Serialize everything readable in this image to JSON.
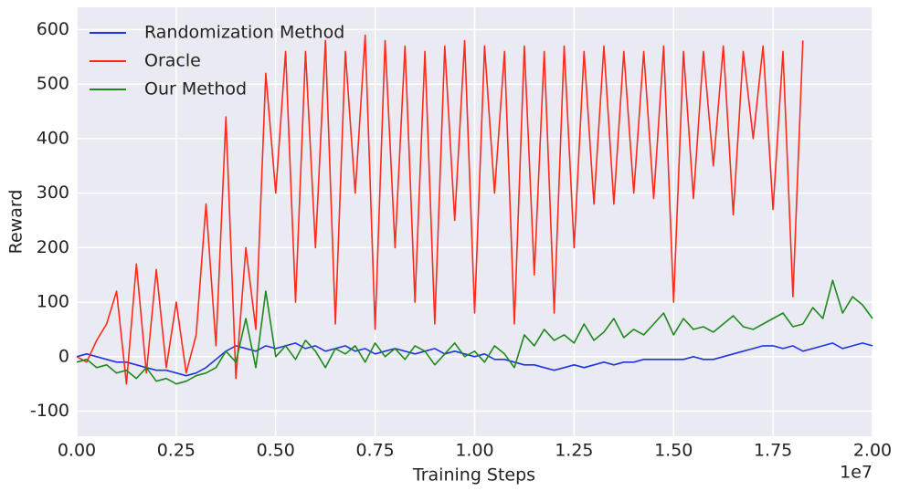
{
  "chart_data": {
    "type": "line",
    "xlabel": "Training Steps",
    "ylabel": "Reward",
    "x_offset_label": "1e7",
    "xlim": [
      0,
      2.0
    ],
    "ylim": [
      -146,
      641
    ],
    "xticks": [
      {
        "value": 0,
        "label": "0.00"
      },
      {
        "value": 0.25,
        "label": "0.25"
      },
      {
        "value": 0.5,
        "label": "0.50"
      },
      {
        "value": 0.75,
        "label": "0.75"
      },
      {
        "value": 1.0,
        "label": "1.00"
      },
      {
        "value": 1.25,
        "label": "1.25"
      },
      {
        "value": 1.5,
        "label": "1.50"
      },
      {
        "value": 1.75,
        "label": "1.75"
      },
      {
        "value": 2.0,
        "label": "2.00"
      }
    ],
    "yticks": [
      -100,
      0,
      100,
      200,
      300,
      400,
      500,
      600
    ],
    "grid": true,
    "legend": "upper left",
    "x": [
      0,
      0.025,
      0.05,
      0.075,
      0.1,
      0.125,
      0.15,
      0.175,
      0.2,
      0.225,
      0.25,
      0.275,
      0.3,
      0.325,
      0.35,
      0.375,
      0.4,
      0.425,
      0.45,
      0.475,
      0.5,
      0.525,
      0.55,
      0.575,
      0.6,
      0.625,
      0.65,
      0.675,
      0.7,
      0.725,
      0.75,
      0.775,
      0.8,
      0.825,
      0.85,
      0.875,
      0.9,
      0.925,
      0.95,
      0.975,
      1.0,
      1.025,
      1.05,
      1.075,
      1.1,
      1.125,
      1.15,
      1.175,
      1.2,
      1.225,
      1.25,
      1.275,
      1.3,
      1.325,
      1.35,
      1.375,
      1.4,
      1.425,
      1.45,
      1.475,
      1.5,
      1.525,
      1.55,
      1.575,
      1.6,
      1.625,
      1.65,
      1.675,
      1.7,
      1.725,
      1.75,
      1.775,
      1.8,
      1.825,
      1.85,
      1.875,
      1.9,
      1.925,
      1.95,
      1.975,
      2.0
    ],
    "series": [
      {
        "name": "Randomization Method",
        "color": "#1f35e0",
        "values": [
          0,
          5,
          0,
          -5,
          -10,
          -10,
          -15,
          -20,
          -25,
          -25,
          -30,
          -35,
          -30,
          -20,
          -5,
          10,
          20,
          15,
          10,
          20,
          15,
          20,
          25,
          15,
          20,
          10,
          15,
          20,
          10,
          15,
          5,
          10,
          15,
          10,
          5,
          10,
          15,
          5,
          10,
          5,
          0,
          5,
          -5,
          -5,
          -10,
          -15,
          -15,
          -20,
          -25,
          -20,
          -15,
          -20,
          -15,
          -10,
          -15,
          -10,
          -10,
          -5,
          -5,
          -5,
          -5,
          -5,
          0,
          -5,
          -5,
          0,
          5,
          10,
          15,
          20,
          20,
          15,
          20,
          10,
          15,
          20,
          25,
          15,
          20,
          25,
          20
        ]
      },
      {
        "name": "Oracle",
        "color": "#ff2a1a",
        "values": [
          0,
          -10,
          30,
          60,
          120,
          -50,
          170,
          -30,
          160,
          -20,
          100,
          -30,
          40,
          280,
          20,
          440,
          -40,
          200,
          50,
          520,
          300,
          560,
          100,
          560,
          200,
          580,
          60,
          560,
          300,
          590,
          50,
          580,
          200,
          570,
          100,
          560,
          60,
          570,
          250,
          580,
          80,
          570,
          300,
          560,
          60,
          570,
          150,
          560,
          80,
          570,
          200,
          560,
          280,
          570,
          280,
          560,
          300,
          560,
          290,
          570,
          100,
          560,
          290,
          560,
          350,
          570,
          260,
          560,
          400,
          570,
          270,
          560,
          110,
          580,
          null,
          null,
          null,
          null,
          null,
          null,
          null
        ]
      },
      {
        "name": "Our Method",
        "color": "#1e8a1e",
        "values": [
          -10,
          -5,
          -20,
          -15,
          -30,
          -25,
          -40,
          -20,
          -45,
          -40,
          -50,
          -45,
          -35,
          -30,
          -20,
          10,
          -10,
          70,
          -20,
          120,
          0,
          20,
          -5,
          30,
          10,
          -20,
          15,
          5,
          20,
          -10,
          25,
          0,
          15,
          -5,
          20,
          10,
          -15,
          5,
          25,
          0,
          10,
          -10,
          20,
          5,
          -20,
          40,
          20,
          50,
          30,
          40,
          25,
          60,
          30,
          45,
          70,
          35,
          50,
          40,
          60,
          80,
          40,
          70,
          50,
          55,
          45,
          60,
          75,
          55,
          50,
          60,
          70,
          80,
          55,
          60,
          90,
          70,
          140,
          80,
          110,
          95,
          70
        ]
      }
    ]
  }
}
